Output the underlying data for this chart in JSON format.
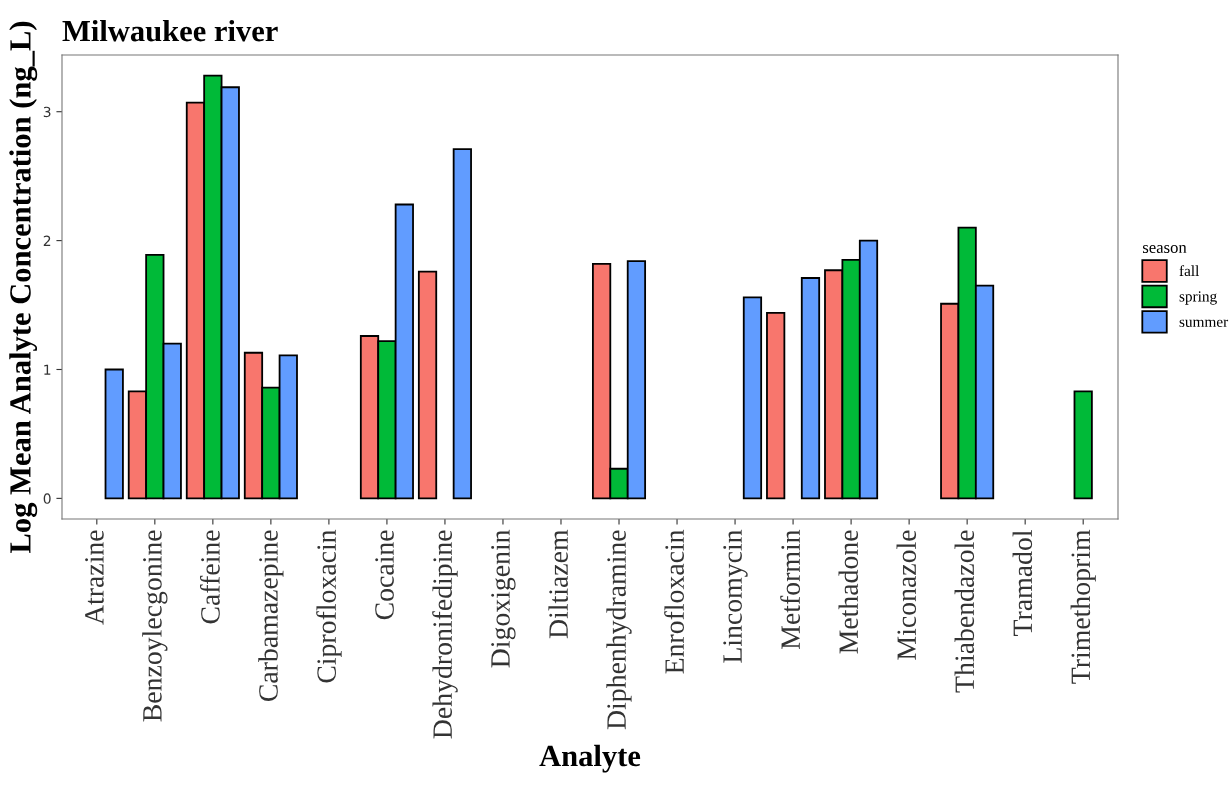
{
  "chart_data": {
    "type": "bar",
    "title": "Milwaukee river",
    "xlabel": "Analyte",
    "ylabel": "Log Mean Analyte Concentration (ng_L)",
    "legend_title": "season",
    "legend": "right",
    "grid": false,
    "categories": [
      "Atrazine",
      "Benzoylecgonine",
      "Caffeine",
      "Carbamazepine",
      "Ciprofloxacin",
      "Cocaine",
      "Dehydronifedipine",
      "Digoxigenin",
      "Diltiazem",
      "Diphenhydramine",
      "Enrofloxacin",
      "Lincomycin",
      "Metformin",
      "Methadone",
      "Miconazole",
      "Thiabendazole",
      "Tramadol",
      "Trimethoprim"
    ],
    "ylim": [
      -0.16,
      3.44
    ],
    "yticks": [
      0,
      1,
      2,
      3
    ],
    "series": [
      {
        "name": "fall",
        "color": "#f8766d",
        "values": [
          null,
          0.83,
          3.07,
          1.13,
          null,
          1.26,
          1.76,
          null,
          null,
          1.82,
          null,
          null,
          1.44,
          1.77,
          null,
          1.51,
          null,
          null
        ]
      },
      {
        "name": "spring",
        "color": "#00ba38",
        "values": [
          null,
          1.89,
          3.28,
          0.86,
          null,
          1.22,
          null,
          null,
          null,
          0.23,
          null,
          null,
          null,
          1.85,
          null,
          2.1,
          null,
          0.83
        ]
      },
      {
        "name": "summer",
        "color": "#619cff",
        "values": [
          1.0,
          1.2,
          3.19,
          1.11,
          null,
          2.28,
          2.71,
          null,
          null,
          1.84,
          null,
          1.56,
          1.71,
          2.0,
          null,
          1.65,
          null,
          null
        ]
      }
    ]
  }
}
